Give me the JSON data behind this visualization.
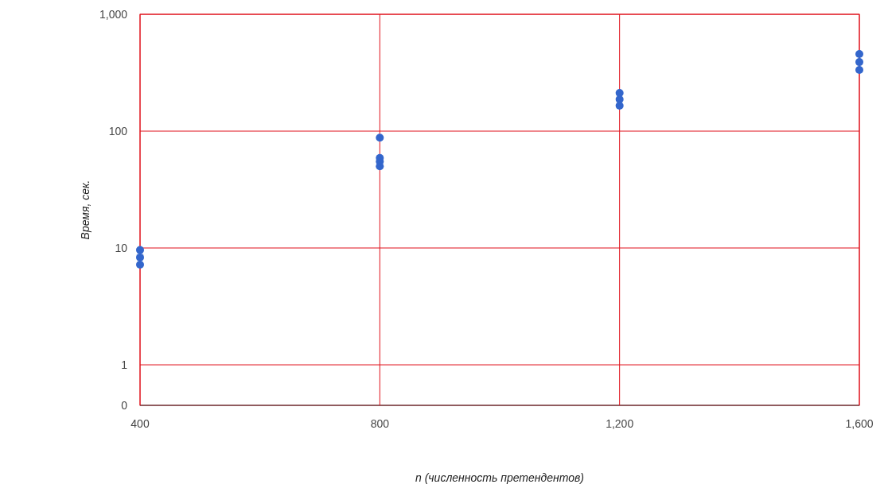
{
  "chart_data": {
    "type": "scatter",
    "xlabel": "n (численность претендентов)",
    "ylabel": "Время, сек.",
    "log": "y",
    "grid": true,
    "marker": "circle",
    "xlim": [
      400,
      1600
    ],
    "xticks": [
      400,
      800,
      {
        "value": 1200,
        "label": "1,200"
      },
      {
        "value": 1600,
        "label": "1,600"
      }
    ],
    "ylim": [
      0.45,
      1000
    ],
    "yticks": [
      {
        "value": 0.45,
        "label": "0"
      },
      1,
      10,
      100,
      {
        "value": 1000,
        "label": "1,000"
      }
    ],
    "series": [
      {
        "color": "#3366cc",
        "x": [
          400,
          400,
          400,
          800,
          800,
          800,
          800,
          1200,
          1200,
          1200,
          1600,
          1600,
          1600
        ],
        "values": [
          7.2,
          8.3,
          9.6,
          88,
          50,
          55,
          59,
          165,
          187,
          212,
          334,
          390,
          457
        ]
      }
    ]
  }
}
